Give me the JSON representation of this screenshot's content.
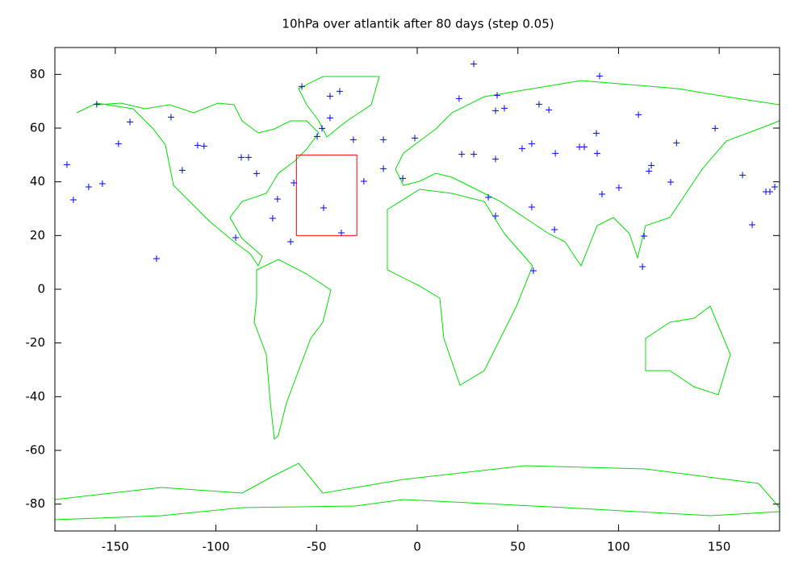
{
  "chart_data": {
    "type": "scatter",
    "title": "10hPa over atlantik after 80 days (step 0.05)",
    "x": [
      -159.2,
      -142.7,
      -148.4,
      -174.0,
      -170.8,
      -163.2,
      -156.4,
      -129.5,
      -122.3,
      -116.7,
      -109.1,
      -105.9,
      -87.4,
      -83.8,
      -79.8,
      -90.2,
      -69.4,
      -71.8,
      -62.9,
      -61.3,
      -57.3,
      -47.3,
      -49.7,
      -43.3,
      -38.5,
      -43.3,
      -31.7,
      -46.5,
      -37.7,
      -26.5,
      -16.8,
      -16.8,
      -7.2,
      -1.2,
      20.8,
      28.1,
      22.1,
      28.1,
      39.7,
      38.9,
      43.3,
      38.9,
      35.3,
      38.9,
      60.5,
      65.4,
      52.1,
      56.9,
      68.6,
      56.9,
      57.7,
      68.2,
      80.6,
      83.0,
      89.0,
      89.4,
      90.6,
      91.8,
      100.2,
      109.9,
      116.3,
      115.1,
      128.8,
      125.9,
      112.7,
      111.9,
      148.0,
      161.6,
      166.4,
      173.2,
      175.2,
      177.6
    ],
    "y": [
      68.9,
      62.3,
      54.2,
      46.4,
      33.3,
      38.1,
      39.3,
      11.4,
      64.1,
      44.3,
      53.6,
      53.3,
      49.1,
      49.1,
      43.1,
      19.2,
      33.6,
      26.4,
      17.7,
      39.6,
      75.5,
      59.9,
      56.9,
      71.9,
      73.7,
      63.8,
      55.7,
      30.3,
      21.0,
      40.2,
      55.7,
      44.9,
      41.3,
      56.3,
      71.0,
      83.9,
      50.3,
      50.3,
      72.2,
      66.5,
      67.4,
      48.5,
      34.2,
      27.3,
      68.9,
      66.8,
      52.4,
      54.2,
      50.6,
      30.6,
      6.9,
      22.2,
      53.0,
      53.0,
      58.1,
      50.6,
      79.4,
      35.4,
      37.8,
      65.0,
      46.1,
      44.0,
      54.5,
      39.9,
      19.8,
      8.4,
      59.9,
      42.5,
      24.0,
      36.3,
      36.3,
      38.1
    ],
    "color": "#0000ff",
    "box": {
      "xlim": [
        -60,
        -30
      ],
      "ylim": [
        20,
        50
      ],
      "color": "#ff0000"
    },
    "xlim": [
      -180,
      180
    ],
    "xticks": [
      -150,
      -100,
      -50,
      0,
      50,
      100,
      150
    ],
    "ylim": [
      -90,
      90
    ],
    "yticks": [
      -80,
      -60,
      -40,
      -20,
      0,
      20,
      40,
      60,
      80
    ]
  }
}
